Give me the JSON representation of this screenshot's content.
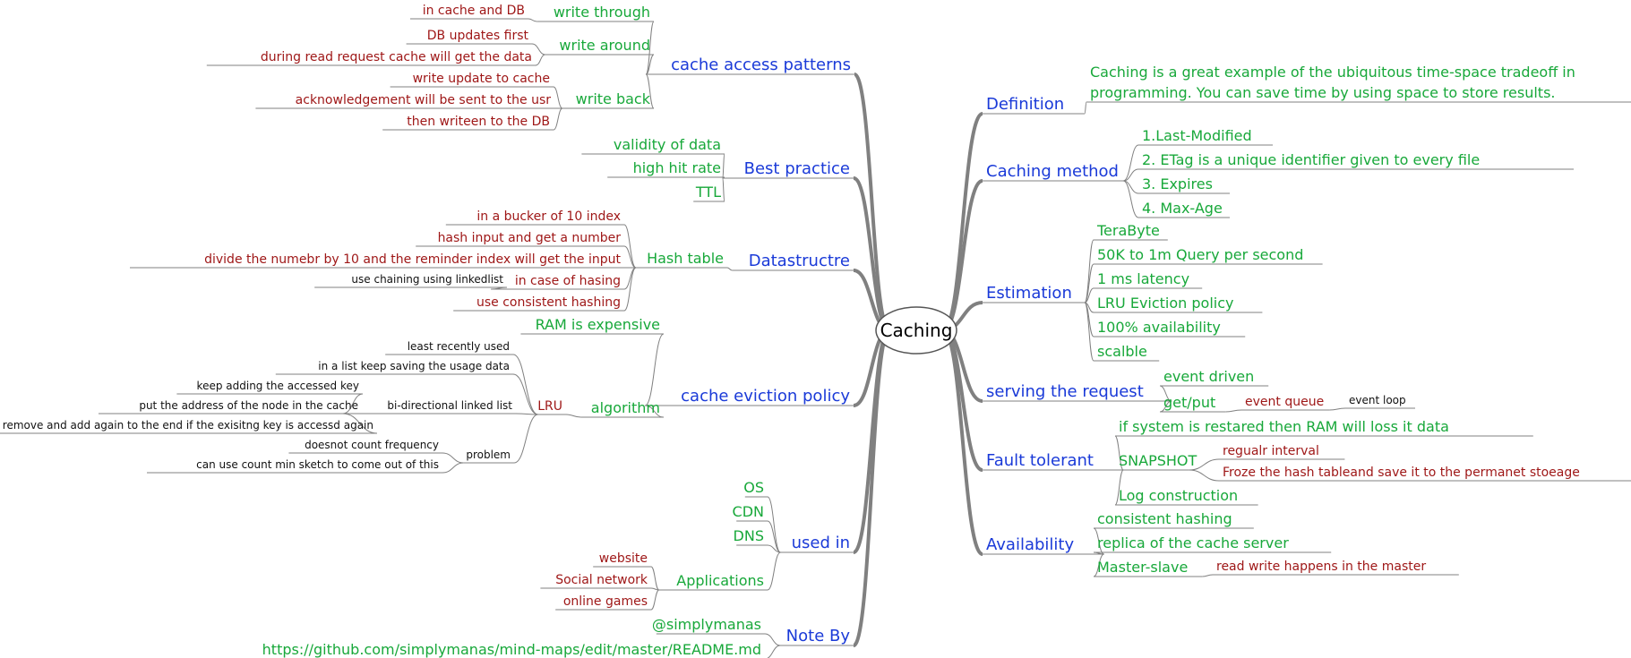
{
  "root": "Caching",
  "colors": {
    "main_branch": "#1a3ad8",
    "subtopic": "#18a83a",
    "detail": "#9e1616",
    "note": "#111111",
    "edge": "#808080"
  },
  "branches": [
    {
      "label": "cache access patterns",
      "children": [
        {
          "label": "write through",
          "children": [
            {
              "label": "in cache and DB"
            }
          ]
        },
        {
          "label": "write around",
          "children": [
            {
              "label": "DB updates first"
            },
            {
              "label": "during read request cache will get the data"
            }
          ]
        },
        {
          "label": "write back",
          "children": [
            {
              "label": "write update to cache"
            },
            {
              "label": "acknowledgement will be sent to the usr"
            },
            {
              "label": "then writeen to the DB"
            }
          ]
        }
      ]
    },
    {
      "label": "Best practice",
      "children": [
        {
          "label": "validity of data"
        },
        {
          "label": "high hit rate"
        },
        {
          "label": "TTL"
        }
      ]
    },
    {
      "label": "Datastructre",
      "children": [
        {
          "label": "Hash table",
          "children": [
            {
              "label": "in a bucker of 10 index"
            },
            {
              "label": "hash input and get a number"
            },
            {
              "label": "divide the numebr by 10 and the reminder index will get the input"
            },
            {
              "label": "in case of hasing",
              "children": [
                {
                  "label": "use chaining using linkedlist"
                }
              ]
            },
            {
              "label": "use consistent hashing"
            }
          ]
        }
      ]
    },
    {
      "label": "cache eviction policy",
      "children": [
        {
          "label": "RAM is expensive"
        },
        {
          "label": "algorithm",
          "children": [
            {
              "label": "LRU",
              "children": [
                {
                  "label": "least recently used"
                },
                {
                  "label": "in a list keep saving the usage data"
                },
                {
                  "label": "bi-directional linked list",
                  "children": [
                    {
                      "label": "keep adding the accessed key"
                    },
                    {
                      "label": "put the address of the node in the cache"
                    },
                    {
                      "label": "remove and add again to the end if the exisitng key is accessd again"
                    }
                  ]
                },
                {
                  "label": "problem",
                  "children": [
                    {
                      "label": "doesnot count frequency"
                    },
                    {
                      "label": "can use count min sketch to  come out of this"
                    }
                  ]
                }
              ]
            }
          ]
        }
      ]
    },
    {
      "label": "used in",
      "children": [
        {
          "label": "OS"
        },
        {
          "label": "CDN"
        },
        {
          "label": "DNS"
        },
        {
          "label": "Applications",
          "children": [
            {
              "label": "website"
            },
            {
              "label": "Social network"
            },
            {
              "label": "online games"
            }
          ]
        }
      ]
    },
    {
      "label": "Note By",
      "children": [
        {
          "label": "@simplymanas"
        },
        {
          "label": "https://github.com/simplymanas/mind-maps/edit/master/README.md"
        }
      ]
    },
    {
      "label": "Definition",
      "children": [
        {
          "label": "Caching is a great example of the ubiquitous time-space tradeoff in",
          "label2": "programming. You can save time by using space to store results."
        }
      ]
    },
    {
      "label": "Caching method",
      "children": [
        {
          "label": "1.Last-Modified"
        },
        {
          "label": "2. ETag is a unique identifier given to every file"
        },
        {
          "label": "3. Expires"
        },
        {
          "label": "4. Max-Age"
        }
      ]
    },
    {
      "label": "Estimation",
      "children": [
        {
          "label": "TeraByte"
        },
        {
          "label": "50K to 1m Query per second"
        },
        {
          "label": "1 ms latency"
        },
        {
          "label": "LRU Eviction policy"
        },
        {
          "label": "100% availability"
        },
        {
          "label": "scalble"
        }
      ]
    },
    {
      "label": "serving the request",
      "children": [
        {
          "label": "event driven"
        },
        {
          "label": "get/put",
          "children": [
            {
              "label": "event queue",
              "children": [
                {
                  "label": "event loop"
                }
              ]
            }
          ]
        }
      ]
    },
    {
      "label": "Fault tolerant",
      "children": [
        {
          "label": "if system is restared then RAM will loss it data"
        },
        {
          "label": "SNAPSHOT",
          "children": [
            {
              "label": "regualr interval"
            },
            {
              "label": "Froze the hash tableand save it to the permanet stoeage"
            }
          ]
        },
        {
          "label": "Log construction"
        }
      ]
    },
    {
      "label": "Availability",
      "children": [
        {
          "label": "consistent hashing"
        },
        {
          "label": "replica of the cache server"
        },
        {
          "label": "Master-slave",
          "children": [
            {
              "label": "read write happens in the master"
            }
          ]
        }
      ]
    }
  ]
}
